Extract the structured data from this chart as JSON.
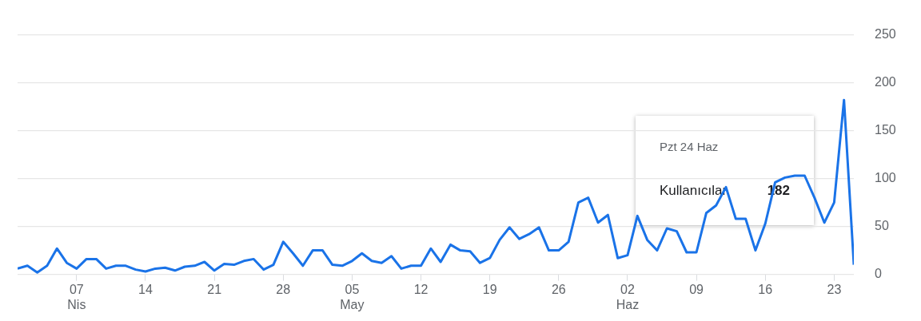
{
  "chart_data": {
    "type": "line",
    "x": [
      "--04-01",
      "--04-02",
      "--04-03",
      "--04-04",
      "--04-05",
      "--04-06",
      "--04-07",
      "--04-08",
      "--04-09",
      "--04-10",
      "--04-11",
      "--04-12",
      "--04-13",
      "--04-14",
      "--04-15",
      "--04-16",
      "--04-17",
      "--04-18",
      "--04-19",
      "--04-20",
      "--04-21",
      "--04-22",
      "--04-23",
      "--04-24",
      "--04-25",
      "--04-26",
      "--04-27",
      "--04-28",
      "--04-29",
      "--04-30",
      "--05-01",
      "--05-02",
      "--05-03",
      "--05-04",
      "--05-05",
      "--05-06",
      "--05-07",
      "--05-08",
      "--05-09",
      "--05-10",
      "--05-11",
      "--05-12",
      "--05-13",
      "--05-14",
      "--05-15",
      "--05-16",
      "--05-17",
      "--05-18",
      "--05-19",
      "--05-20",
      "--05-21",
      "--05-22",
      "--05-23",
      "--05-24",
      "--05-25",
      "--05-26",
      "--05-27",
      "--05-28",
      "--05-29",
      "--05-30",
      "--05-31",
      "--06-01",
      "--06-02",
      "--06-03",
      "--06-04",
      "--06-05",
      "--06-06",
      "--06-07",
      "--06-08",
      "--06-09",
      "--06-10",
      "--06-11",
      "--06-12",
      "--06-13",
      "--06-14",
      "--06-15",
      "--06-16",
      "--06-17",
      "--06-18",
      "--06-19",
      "--06-20",
      "--06-21",
      "--06-22",
      "--06-23",
      "--06-24",
      "--06-25"
    ],
    "series": [
      {
        "name": "Kullanıcılar",
        "color": "#1a73e8",
        "values": [
          6,
          9,
          2,
          9,
          27,
          12,
          6,
          16,
          16,
          6,
          9,
          9,
          5,
          3,
          6,
          7,
          4,
          8,
          9,
          13,
          4,
          11,
          10,
          14,
          16,
          5,
          10,
          34,
          22,
          9,
          25,
          25,
          10,
          9,
          14,
          22,
          14,
          12,
          19,
          6,
          9,
          9,
          27,
          13,
          31,
          25,
          24,
          12,
          17,
          36,
          49,
          37,
          42,
          49,
          25,
          25,
          34,
          75,
          80,
          54,
          62,
          17,
          20,
          61,
          36,
          25,
          48,
          45,
          23,
          23,
          64,
          72,
          91,
          58,
          58,
          25,
          53,
          96,
          101,
          103,
          103,
          80,
          54,
          75,
          182,
          10
        ]
      }
    ],
    "xlim": [
      "--04-01",
      "--06-25"
    ],
    "xticks": [
      {
        "value": "--04-07",
        "label": "07\nNis"
      },
      {
        "value": "--04-14",
        "label": "14"
      },
      {
        "value": "--04-21",
        "label": "21"
      },
      {
        "value": "--04-28",
        "label": "28"
      },
      {
        "value": "--05-05",
        "label": "05\nMay"
      },
      {
        "value": "--05-12",
        "label": "12"
      },
      {
        "value": "--05-19",
        "label": "19"
      },
      {
        "value": "--05-26",
        "label": "26"
      },
      {
        "value": "--06-02",
        "label": "02\nHaz"
      },
      {
        "value": "--06-09",
        "label": "09"
      },
      {
        "value": "--06-16",
        "label": "16"
      },
      {
        "value": "--06-23",
        "label": "23"
      }
    ],
    "ylim": [
      0,
      250
    ],
    "yticks": [
      0,
      50,
      100,
      150,
      200,
      250
    ],
    "grid": "y",
    "legend": false,
    "marker": "none",
    "line_style": "solid",
    "annotations": [
      "Pzt 24 Haz",
      "182"
    ]
  }
}
